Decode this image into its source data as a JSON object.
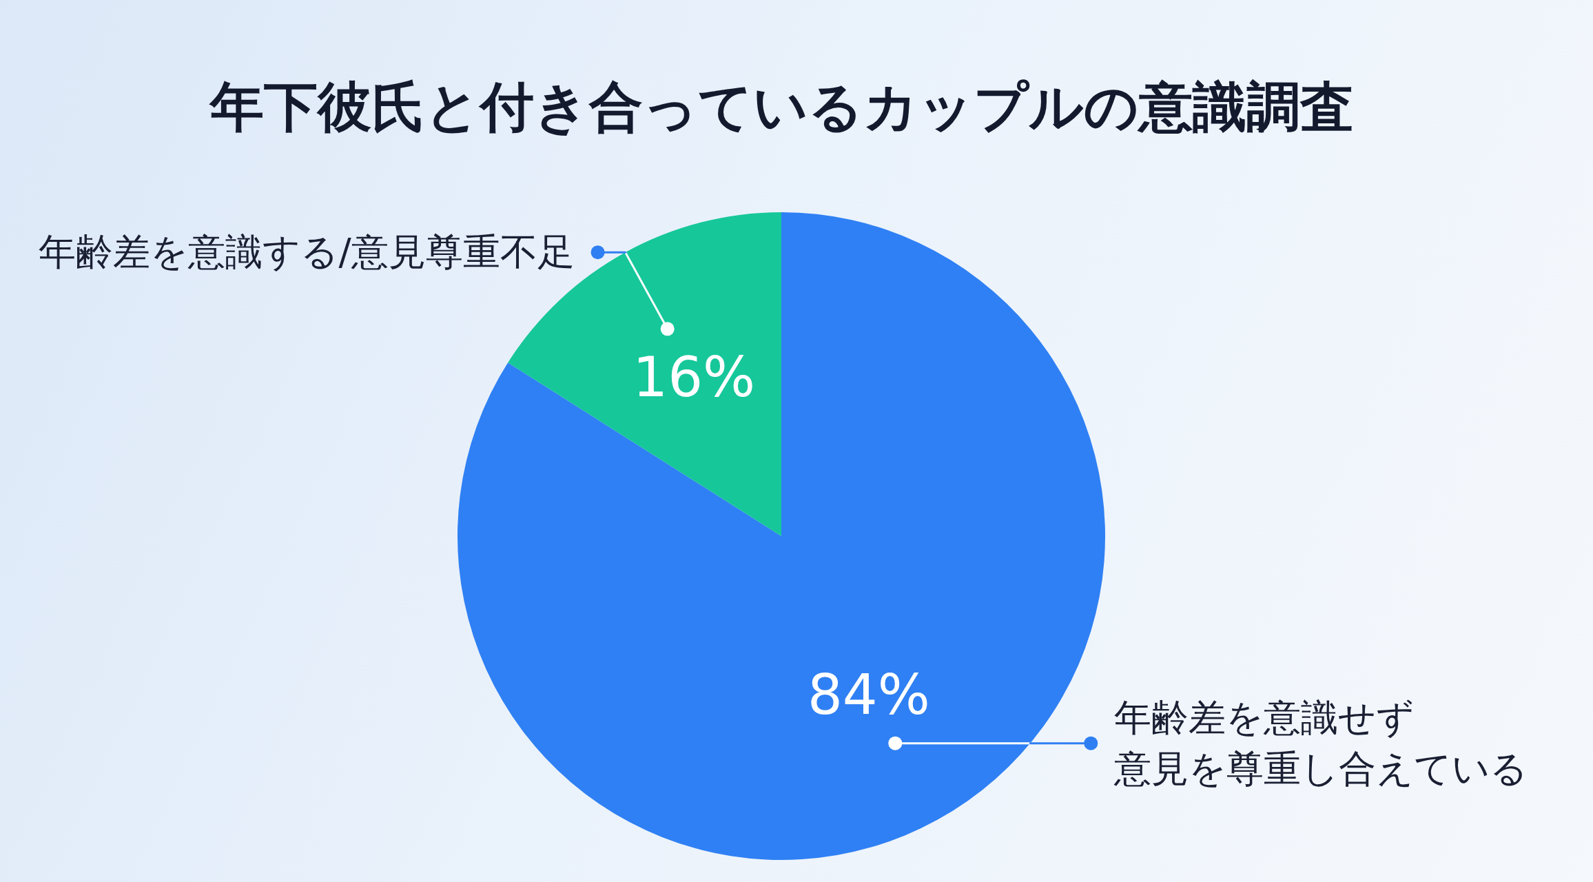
{
  "chart_data": {
    "type": "pie",
    "title": "年下彼氏と付き合っているカップルの意識調査",
    "categories": [
      "年齢差を意識せず意見を尊重し合えている",
      "年齢差を意識する/意見尊重不足"
    ],
    "values": [
      84,
      16
    ],
    "colors": [
      "#2f80f4",
      "#16c79a"
    ],
    "value_labels": [
      "84%",
      "16%"
    ]
  }
}
